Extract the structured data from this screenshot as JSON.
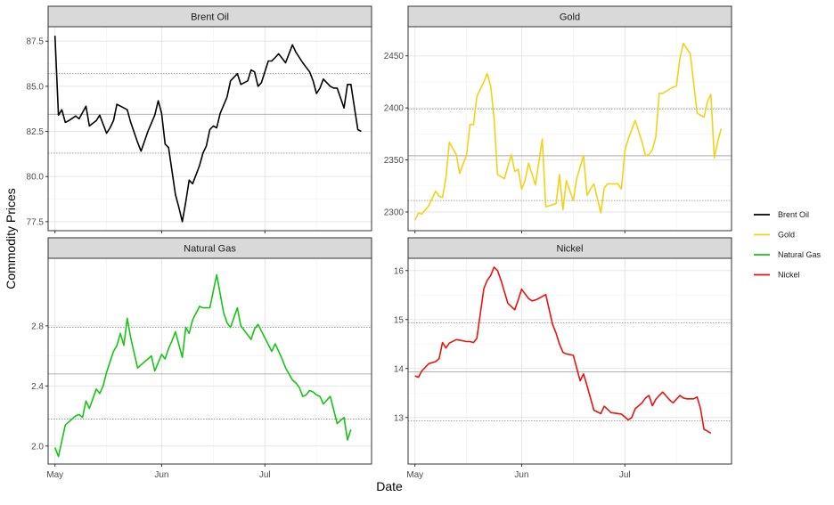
{
  "figure": {
    "xlabel": "Date",
    "ylabel": "Commodity Prices",
    "x_tick_labels": [
      "May",
      "Jun",
      "Jul"
    ]
  },
  "legend": {
    "placement": "right",
    "items": [
      {
        "label": "Brent Oil",
        "color": "#000000"
      },
      {
        "label": "Gold",
        "color": "#f2d219"
      },
      {
        "label": "Natural Gas",
        "color": "#16c416"
      },
      {
        "label": "Nickel",
        "color": "#e8130f"
      }
    ]
  },
  "chart_data": [
    {
      "type": "line",
      "panel": "Brent Oil",
      "color": "#000000",
      "xlim": [
        "2024-04-29",
        "2024-08-01"
      ],
      "ylim": [
        77.0,
        88.3
      ],
      "yticks": [
        77.5,
        80.0,
        82.5,
        85.0,
        87.5
      ],
      "ytick_labels": [
        "77.5",
        "80.0",
        "82.5",
        "85.0",
        "87.5"
      ],
      "reference_lines": {
        "mean": 83.45,
        "lower": 81.3,
        "upper": 85.7
      },
      "x": [
        "2024-05-01",
        "2024-05-02",
        "2024-05-03",
        "2024-05-04",
        "2024-05-05",
        "2024-05-07",
        "2024-05-08",
        "2024-05-10",
        "2024-05-11",
        "2024-05-13",
        "2024-05-14",
        "2024-05-16",
        "2024-05-17",
        "2024-05-18",
        "2024-05-19",
        "2024-05-22",
        "2024-05-23",
        "2024-05-25",
        "2024-05-26",
        "2024-05-28",
        "2024-05-30",
        "2024-05-31",
        "2024-06-01",
        "2024-06-02",
        "2024-06-03",
        "2024-06-05",
        "2024-06-06",
        "2024-06-07",
        "2024-06-08",
        "2024-06-09",
        "2024-06-10",
        "2024-06-12",
        "2024-06-13",
        "2024-06-14",
        "2024-06-15",
        "2024-06-16",
        "2024-06-17",
        "2024-06-18",
        "2024-06-20",
        "2024-06-21",
        "2024-06-23",
        "2024-06-24",
        "2024-06-26",
        "2024-06-27",
        "2024-06-28",
        "2024-06-29",
        "2024-06-30",
        "2024-07-02",
        "2024-07-03",
        "2024-07-04",
        "2024-07-05",
        "2024-07-07",
        "2024-07-09",
        "2024-07-10",
        "2024-07-11",
        "2024-07-12",
        "2024-07-14",
        "2024-07-15",
        "2024-07-16",
        "2024-07-17",
        "2024-07-18",
        "2024-07-20",
        "2024-07-21",
        "2024-07-22",
        "2024-07-24",
        "2024-07-25",
        "2024-07-26",
        "2024-07-28",
        "2024-07-29"
      ],
      "values": [
        87.8,
        83.4,
        83.7,
        83.0,
        83.1,
        83.35,
        83.2,
        83.9,
        82.8,
        83.1,
        83.4,
        82.4,
        82.7,
        83.1,
        84.0,
        83.7,
        83.0,
        81.9,
        81.4,
        82.5,
        83.4,
        84.2,
        83.5,
        81.8,
        81.6,
        79.0,
        78.3,
        77.5,
        78.6,
        79.8,
        79.6,
        80.6,
        81.3,
        81.7,
        82.6,
        82.8,
        82.7,
        83.5,
        84.4,
        85.3,
        85.7,
        85.1,
        85.3,
        85.9,
        85.8,
        85.0,
        85.2,
        86.4,
        86.4,
        86.6,
        86.8,
        86.3,
        87.3,
        86.9,
        86.6,
        86.3,
        85.8,
        85.3,
        84.6,
        84.9,
        85.4,
        85.0,
        84.9,
        84.9,
        83.8,
        85.1,
        85.1,
        82.6,
        82.5
      ]
    },
    {
      "type": "line",
      "panel": "Gold",
      "color": "#f2d219",
      "xlim": [
        "2024-04-29",
        "2024-08-01"
      ],
      "ylim": [
        2282,
        2478
      ],
      "yticks": [
        2300,
        2350,
        2400,
        2450
      ],
      "ytick_labels": [
        "2300",
        "2350",
        "2400",
        "2450"
      ],
      "reference_lines": {
        "mean": 2354,
        "lower": 2311,
        "upper": 2399
      },
      "x": [
        "2024-05-01",
        "2024-05-02",
        "2024-05-03",
        "2024-05-05",
        "2024-05-07",
        "2024-05-08",
        "2024-05-09",
        "2024-05-10",
        "2024-05-11",
        "2024-05-13",
        "2024-05-14",
        "2024-05-16",
        "2024-05-17",
        "2024-05-18",
        "2024-05-19",
        "2024-05-21",
        "2024-05-22",
        "2024-05-23",
        "2024-05-24",
        "2024-05-25",
        "2024-05-27",
        "2024-05-28",
        "2024-05-29",
        "2024-05-30",
        "2024-05-31",
        "2024-06-01",
        "2024-06-02",
        "2024-06-03",
        "2024-06-05",
        "2024-06-07",
        "2024-06-08",
        "2024-06-09",
        "2024-06-10",
        "2024-06-11",
        "2024-06-12",
        "2024-06-13",
        "2024-06-14",
        "2024-06-16",
        "2024-06-17",
        "2024-06-19",
        "2024-06-20",
        "2024-06-21",
        "2024-06-22",
        "2024-06-24",
        "2024-06-25",
        "2024-06-26",
        "2024-06-27",
        "2024-06-28",
        "2024-06-29",
        "2024-06-30",
        "2024-07-01",
        "2024-07-02",
        "2024-07-04",
        "2024-07-06",
        "2024-07-07",
        "2024-07-08",
        "2024-07-09",
        "2024-07-10",
        "2024-07-11",
        "2024-07-12",
        "2024-07-13",
        "2024-07-14",
        "2024-07-15",
        "2024-07-16",
        "2024-07-17",
        "2024-07-18",
        "2024-07-19",
        "2024-07-20",
        "2024-07-22",
        "2024-07-23",
        "2024-07-24",
        "2024-07-25",
        "2024-07-26",
        "2024-07-27",
        "2024-07-28",
        "2024-07-29"
      ],
      "values": [
        2292,
        2299,
        2298,
        2306,
        2320,
        2315,
        2314,
        2333,
        2367,
        2355,
        2337,
        2355,
        2384,
        2384,
        2411,
        2425,
        2433,
        2421,
        2390,
        2336,
        2332,
        2344,
        2355,
        2339,
        2341,
        2322,
        2330,
        2347,
        2326,
        2370,
        2305,
        2306,
        2307,
        2308,
        2336,
        2302,
        2330,
        2311,
        2332,
        2354,
        2316,
        2322,
        2327,
        2299,
        2323,
        2327,
        2327,
        2327,
        2327,
        2322,
        2359,
        2370,
        2388,
        2367,
        2354,
        2355,
        2360,
        2372,
        2414,
        2414,
        2416,
        2418,
        2420,
        2421,
        2448,
        2462,
        2457,
        2452,
        2395,
        2393,
        2391,
        2406,
        2413,
        2352,
        2368,
        2380
      ]
    },
    {
      "type": "line",
      "panel": "Natural Gas",
      "color": "#16c416",
      "xlim": [
        "2024-04-29",
        "2024-08-01"
      ],
      "ylim": [
        1.88,
        3.25
      ],
      "yticks": [
        2.0,
        2.4,
        2.8
      ],
      "ytick_labels": [
        "2.0",
        "2.4",
        "2.8"
      ],
      "reference_lines": {
        "mean": 2.48,
        "lower": 2.18,
        "upper": 2.79
      },
      "x": [
        "2024-05-01",
        "2024-05-02",
        "2024-05-04",
        "2024-05-07",
        "2024-05-08",
        "2024-05-09",
        "2024-05-10",
        "2024-05-11",
        "2024-05-13",
        "2024-05-14",
        "2024-05-15",
        "2024-05-16",
        "2024-05-18",
        "2024-05-19",
        "2024-05-20",
        "2024-05-21",
        "2024-05-22",
        "2024-05-23",
        "2024-05-25",
        "2024-05-27",
        "2024-05-28",
        "2024-05-29",
        "2024-05-30",
        "2024-06-01",
        "2024-06-02",
        "2024-06-03",
        "2024-06-04",
        "2024-06-05",
        "2024-06-07",
        "2024-06-08",
        "2024-06-09",
        "2024-06-10",
        "2024-06-12",
        "2024-06-13",
        "2024-06-14",
        "2024-06-15",
        "2024-06-17",
        "2024-06-19",
        "2024-06-20",
        "2024-06-21",
        "2024-06-23",
        "2024-06-24",
        "2024-06-26",
        "2024-06-27",
        "2024-06-28",
        "2024-06-29",
        "2024-07-01",
        "2024-07-03",
        "2024-07-04",
        "2024-07-06",
        "2024-07-07",
        "2024-07-09",
        "2024-07-10",
        "2024-07-11",
        "2024-07-12",
        "2024-07-13",
        "2024-07-14",
        "2024-07-15",
        "2024-07-16",
        "2024-07-17",
        "2024-07-18",
        "2024-07-20",
        "2024-07-22",
        "2024-07-24",
        "2024-07-25",
        "2024-07-26"
      ],
      "values": [
        1.99,
        1.93,
        2.14,
        2.2,
        2.21,
        2.19,
        2.3,
        2.25,
        2.38,
        2.35,
        2.4,
        2.49,
        2.63,
        2.67,
        2.75,
        2.67,
        2.85,
        2.72,
        2.52,
        2.56,
        2.58,
        2.6,
        2.5,
        2.61,
        2.58,
        2.65,
        2.7,
        2.76,
        2.59,
        2.79,
        2.75,
        2.84,
        2.93,
        2.92,
        2.92,
        2.92,
        3.14,
        2.89,
        2.82,
        2.79,
        2.92,
        2.8,
        2.74,
        2.71,
        2.78,
        2.81,
        2.72,
        2.63,
        2.68,
        2.58,
        2.52,
        2.44,
        2.42,
        2.39,
        2.33,
        2.34,
        2.37,
        2.36,
        2.34,
        2.33,
        2.28,
        2.33,
        2.15,
        2.19,
        2.04,
        2.11
      ]
    },
    {
      "type": "line",
      "panel": "Nickel",
      "color": "#e8130f",
      "xlim": [
        "2024-04-29",
        "2024-08-01"
      ],
      "ylim": [
        12.05,
        16.25
      ],
      "yticks": [
        13,
        14,
        15,
        16
      ],
      "ytick_labels": [
        "13",
        "14",
        "15",
        "16"
      ],
      "reference_lines": {
        "mean": 13.93,
        "lower": 12.93,
        "upper": 14.93
      },
      "x": [
        "2024-05-01",
        "2024-05-02",
        "2024-05-03",
        "2024-05-05",
        "2024-05-07",
        "2024-05-08",
        "2024-05-09",
        "2024-05-10",
        "2024-05-11",
        "2024-05-13",
        "2024-05-14",
        "2024-05-16",
        "2024-05-17",
        "2024-05-18",
        "2024-05-19",
        "2024-05-21",
        "2024-05-22",
        "2024-05-23",
        "2024-05-24",
        "2024-05-25",
        "2024-05-26",
        "2024-05-28",
        "2024-05-30",
        "2024-05-31",
        "2024-06-01",
        "2024-06-03",
        "2024-06-04",
        "2024-06-05",
        "2024-06-06",
        "2024-06-08",
        "2024-06-10",
        "2024-06-11",
        "2024-06-12",
        "2024-06-13",
        "2024-06-14",
        "2024-06-16",
        "2024-06-18",
        "2024-06-19",
        "2024-06-20",
        "2024-06-22",
        "2024-06-24",
        "2024-06-25",
        "2024-06-27",
        "2024-06-28",
        "2024-06-30",
        "2024-07-02",
        "2024-07-03",
        "2024-07-04",
        "2024-07-06",
        "2024-07-07",
        "2024-07-08",
        "2024-07-09",
        "2024-07-10",
        "2024-07-11",
        "2024-07-12",
        "2024-07-13",
        "2024-07-14",
        "2024-07-15",
        "2024-07-17",
        "2024-07-18",
        "2024-07-19",
        "2024-07-20",
        "2024-07-21",
        "2024-07-22",
        "2024-07-23",
        "2024-07-24",
        "2024-07-25",
        "2024-07-26"
      ],
      "values": [
        13.85,
        13.82,
        13.95,
        14.1,
        14.14,
        14.2,
        14.53,
        14.42,
        14.52,
        14.59,
        14.58,
        14.55,
        14.55,
        14.53,
        14.62,
        15.63,
        15.8,
        15.9,
        16.07,
        16.0,
        15.8,
        15.33,
        15.2,
        15.4,
        15.62,
        15.43,
        15.38,
        15.4,
        15.43,
        15.51,
        14.9,
        14.72,
        14.5,
        14.33,
        14.3,
        14.27,
        13.75,
        13.89,
        13.65,
        13.15,
        13.08,
        13.23,
        13.1,
        13.09,
        13.07,
        12.95,
        13.0,
        13.18,
        13.3,
        13.4,
        13.45,
        13.24,
        13.37,
        13.45,
        13.52,
        13.44,
        13.36,
        13.3,
        13.45,
        13.4,
        13.38,
        13.38,
        13.38,
        13.42,
        13.18,
        12.76,
        12.72,
        12.68
      ]
    }
  ]
}
